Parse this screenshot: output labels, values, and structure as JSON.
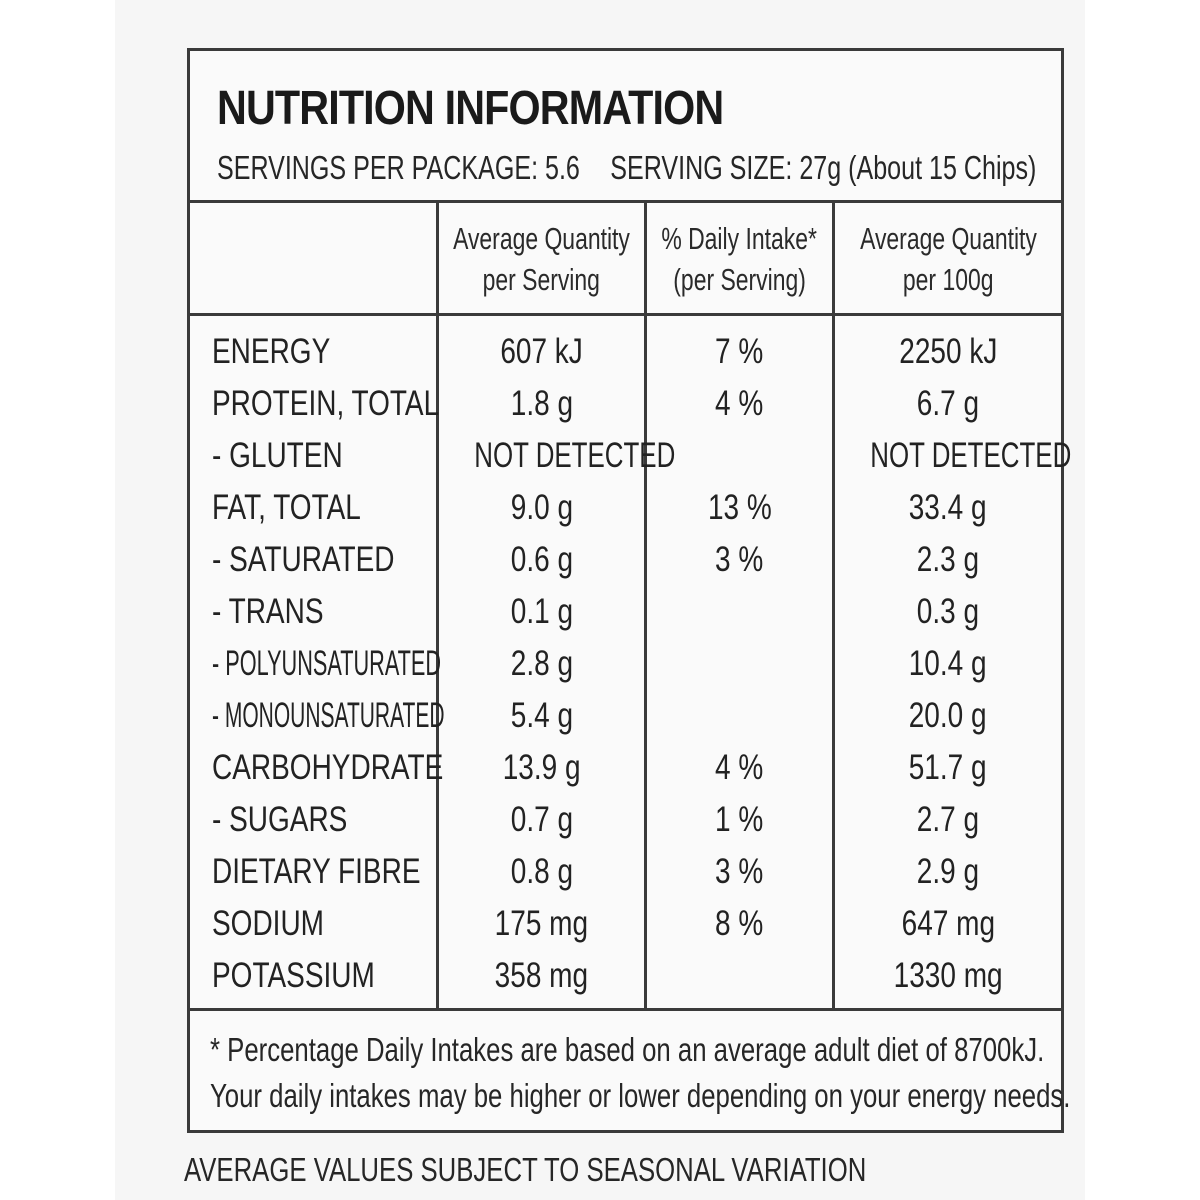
{
  "title": "NUTRITION INFORMATION",
  "servings_per_package": "SERVINGS PER PACKAGE: 5.6",
  "serving_size": "SERVING SIZE: 27g (About 15 Chips)",
  "columns": [
    {
      "line1": "Average Quantity",
      "line2": "per Serving"
    },
    {
      "line1": "% Daily Intake*",
      "line2": "(per Serving)"
    },
    {
      "line1": "Average Quantity",
      "line2": "per 100g"
    }
  ],
  "rows": [
    {
      "nutrient": "ENERGY",
      "per_serving": "607 kJ",
      "daily_intake": "7 %",
      "per_100g": "2250 kJ"
    },
    {
      "nutrient": "PROTEIN, TOTAL",
      "per_serving": "1.8 g",
      "daily_intake": "4 %",
      "per_100g": "6.7 g"
    },
    {
      "nutrient": "- GLUTEN",
      "per_serving": "NOT DETECTED",
      "daily_intake": "",
      "per_100g": "NOT DETECTED"
    },
    {
      "nutrient": "FAT, TOTAL",
      "per_serving": "9.0 g",
      "daily_intake": "13 %",
      "per_100g": "33.4 g"
    },
    {
      "nutrient": "- SATURATED",
      "per_serving": "0.6 g",
      "daily_intake": "3 %",
      "per_100g": "2.3 g"
    },
    {
      "nutrient": "- TRANS",
      "per_serving": "0.1 g",
      "daily_intake": "",
      "per_100g": "0.3 g"
    },
    {
      "nutrient": "- POLYUNSATURATED",
      "per_serving": "2.8 g",
      "daily_intake": "",
      "per_100g": "10.4 g"
    },
    {
      "nutrient": "- MONOUNSATURATED",
      "per_serving": "5.4 g",
      "daily_intake": "",
      "per_100g": "20.0 g"
    },
    {
      "nutrient": "CARBOHYDRATE",
      "per_serving": "13.9 g",
      "daily_intake": "4 %",
      "per_100g": "51.7 g"
    },
    {
      "nutrient": "- SUGARS",
      "per_serving": "0.7 g",
      "daily_intake": "1 %",
      "per_100g": "2.7 g"
    },
    {
      "nutrient": "DIETARY FIBRE",
      "per_serving": "0.8 g",
      "daily_intake": "3 %",
      "per_100g": "2.9 g"
    },
    {
      "nutrient": "SODIUM",
      "per_serving": "175 mg",
      "daily_intake": "8 %",
      "per_100g": "647 mg"
    },
    {
      "nutrient": "POTASSIUM",
      "per_serving": "358 mg",
      "daily_intake": "",
      "per_100g": "1330 mg"
    }
  ],
  "footnote_line1": "* Percentage Daily Intakes are based on an average adult diet of 8700kJ.",
  "footnote_line2": "Your daily intakes may be higher or lower depending on your energy needs.",
  "bottom_note": "AVERAGE VALUES SUBJECT TO SEASONAL VARIATION"
}
